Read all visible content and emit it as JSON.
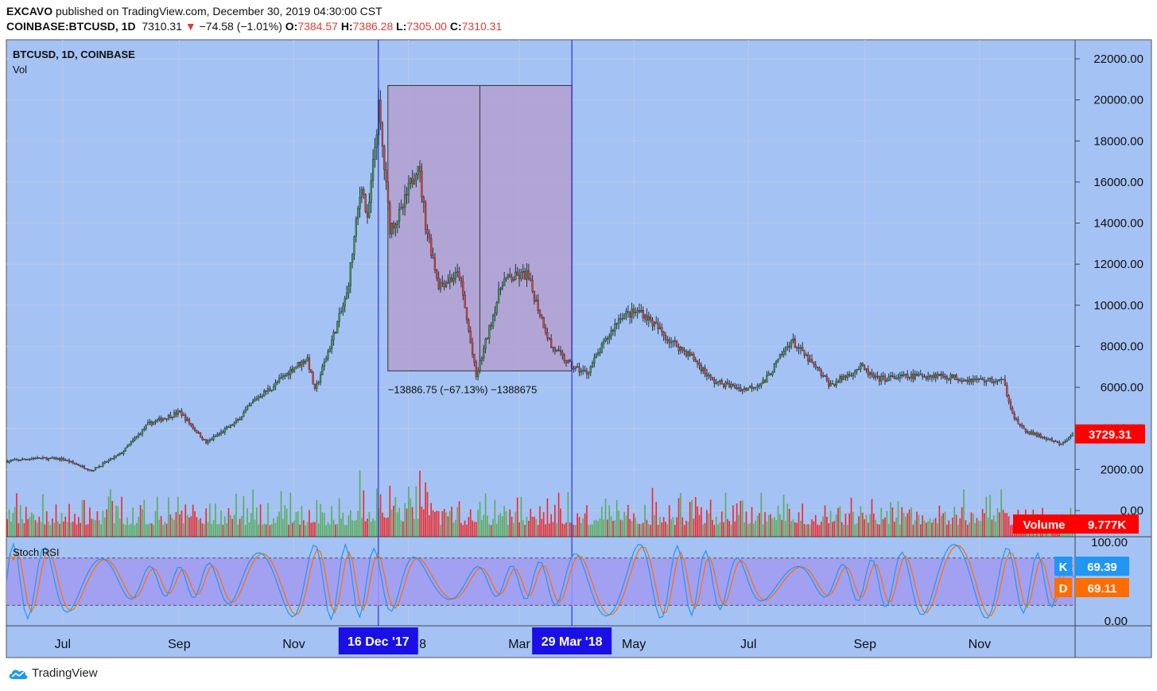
{
  "header": {
    "publisher": "EXCAVO",
    "published_text": "published on TradingView.com, December 30, 2019 04:30:00 CST",
    "symbol": "COINBASE:BTCUSD, 1D",
    "last": "7310.31",
    "change": "−74.58 (−1.01%)",
    "o_label": "O:",
    "o_value": "7384.57",
    "h_label": "H:",
    "h_value": "7386.28",
    "l_label": "L:",
    "l_value": "7305.00",
    "c_label": "C:",
    "c_value": "7310.31"
  },
  "legend": {
    "main": "BTCUSD, 1D, COINBASE",
    "vol": "Vol",
    "stoch": "Stoch RSI"
  },
  "footer": {
    "brand": "TradingView"
  },
  "colors": {
    "background": "#a4c2f4",
    "up": "#3a9a46",
    "down": "#e53935",
    "wick": "#263238",
    "measure_box": "#b4a0d0",
    "stoch_band": "#a29af0",
    "k_line": "#2196f3",
    "d_line": "#ff6d00",
    "marker_blue": "#1a10e6",
    "last_price": "#ff0000"
  },
  "chart_data": {
    "type": "candlestick",
    "symbol": "BTCUSD",
    "interval": "1D",
    "exchange": "COINBASE",
    "ylim": [
      0,
      22500
    ],
    "y_ticks": [
      "22000.00",
      "20000.00",
      "18000.00",
      "16000.00",
      "14000.00",
      "12000.00",
      "10000.00",
      "8000.00",
      "6000.00",
      "4000.00",
      "2000.00",
      "0.00"
    ],
    "x_ticks": [
      "Jul",
      "Sep",
      "Nov",
      "8",
      "Mar",
      "May",
      "Jul",
      "Sep",
      "Nov"
    ],
    "x_tick_dates": [
      "2017-07-01",
      "2017-09-01",
      "2017-11-01",
      "2018-01-01",
      "2018-03-01",
      "2018-05-01",
      "2018-07-01",
      "2018-09-01",
      "2018-11-01"
    ],
    "date_range": [
      "2017-06-01",
      "2018-12-21"
    ],
    "price_path": [
      [
        "2017-06-01",
        2400
      ],
      [
        "2017-06-15",
        2550
      ],
      [
        "2017-07-01",
        2500
      ],
      [
        "2017-07-16",
        1950
      ],
      [
        "2017-08-01",
        2800
      ],
      [
        "2017-08-15",
        4200
      ],
      [
        "2017-09-01",
        4800
      ],
      [
        "2017-09-15",
        3300
      ],
      [
        "2017-10-01",
        4300
      ],
      [
        "2017-10-12",
        5500
      ],
      [
        "2017-10-20",
        6000
      ],
      [
        "2017-11-01",
        7000
      ],
      [
        "2017-11-08",
        7400
      ],
      [
        "2017-11-12",
        5800
      ],
      [
        "2017-11-20",
        8000
      ],
      [
        "2017-11-29",
        10500
      ],
      [
        "2017-12-07",
        16000
      ],
      [
        "2017-12-10",
        14000
      ],
      [
        "2017-12-16",
        19600
      ],
      [
        "2017-12-22",
        13800
      ],
      [
        "2017-12-28",
        14500
      ],
      [
        "2018-01-06",
        17000
      ],
      [
        "2018-01-10",
        14000
      ],
      [
        "2018-01-17",
        11000
      ],
      [
        "2018-01-28",
        11500
      ],
      [
        "2018-02-06",
        6500
      ],
      [
        "2018-02-20",
        11200
      ],
      [
        "2018-03-05",
        11500
      ],
      [
        "2018-03-18",
        8000
      ],
      [
        "2018-03-29",
        7000
      ],
      [
        "2018-04-06",
        6700
      ],
      [
        "2018-04-24",
        9500
      ],
      [
        "2018-05-05",
        9700
      ],
      [
        "2018-05-20",
        8300
      ],
      [
        "2018-06-01",
        7500
      ],
      [
        "2018-06-12",
        6300
      ],
      [
        "2018-06-29",
        5900
      ],
      [
        "2018-07-10",
        6300
      ],
      [
        "2018-07-24",
        8300
      ],
      [
        "2018-08-14",
        6100
      ],
      [
        "2018-08-30",
        7000
      ],
      [
        "2018-09-07",
        6400
      ],
      [
        "2018-09-20",
        6500
      ],
      [
        "2018-10-10",
        6600
      ],
      [
        "2018-10-25",
        6400
      ],
      [
        "2018-11-14",
        6300
      ],
      [
        "2018-11-20",
        4500
      ],
      [
        "2018-11-25",
        3900
      ],
      [
        "2018-12-07",
        3500
      ],
      [
        "2018-12-15",
        3200
      ],
      [
        "2018-12-21",
        3729
      ]
    ],
    "last_price": "3729.31",
    "volume": {
      "label": "Volume",
      "last": "9.777K"
    },
    "stoch_rsi": {
      "ylim": [
        0,
        100
      ],
      "y_ticks": [
        "100.00",
        "0.00"
      ],
      "band": [
        20,
        80
      ],
      "k": {
        "label": "K",
        "value": "69.39"
      },
      "d": {
        "label": "D",
        "value": "69.11"
      }
    },
    "measure": {
      "start_date": "2017-12-16",
      "end_date": "2018-03-29",
      "high": 20700,
      "low": 6800,
      "label": "−13886.75 (−67.13%) −1388675"
    },
    "markers": [
      {
        "date": "2017-12-16",
        "label": "16 Dec '17"
      },
      {
        "date": "2018-03-29",
        "label": "29 Mar '18"
      }
    ]
  }
}
